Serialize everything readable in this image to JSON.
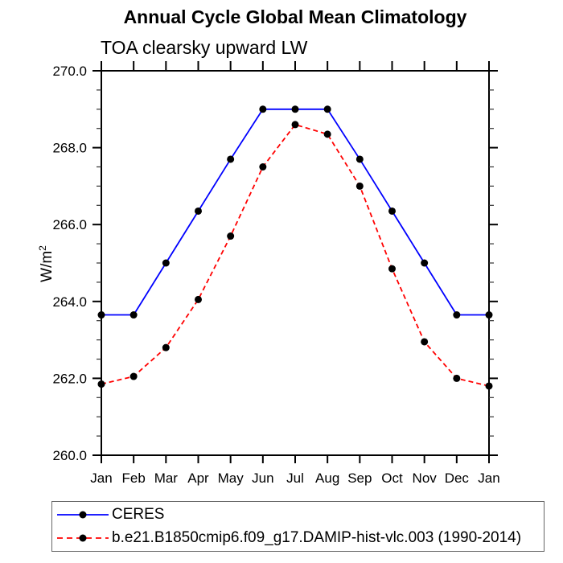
{
  "title": "Annual Cycle Global Mean Climatology",
  "subtitle": "TOA clearsky upward LW",
  "chart_data": {
    "type": "line",
    "x_categories": [
      "Jan",
      "Feb",
      "Mar",
      "Apr",
      "May",
      "Jun",
      "Jul",
      "Aug",
      "Sep",
      "Oct",
      "Nov",
      "Dec",
      "Jan"
    ],
    "xlabel": "",
    "ylabel": "W/m²",
    "ylim": [
      260.0,
      270.0
    ],
    "yticks": [
      {
        "v": 260.0,
        "label": "260.0"
      },
      {
        "v": 262.0,
        "label": "262.0"
      },
      {
        "v": 264.0,
        "label": "264.0"
      },
      {
        "v": 266.0,
        "label": "266.0"
      },
      {
        "v": 268.0,
        "label": "268.0"
      },
      {
        "v": 270.0,
        "label": "270.0"
      }
    ],
    "ytick_minor_step": 0.5,
    "grid": false,
    "legend_position": "bottom",
    "colors": {
      "axis": "#000000",
      "marker": "#000000",
      "ceres_line": "#0000ff",
      "model_line": "#ff0000"
    },
    "series": [
      {
        "name": "CERES",
        "color": "#0000ff",
        "style": "solid",
        "marker": "circle",
        "values": [
          263.65,
          263.65,
          265.0,
          266.35,
          267.7,
          269.0,
          269.0,
          269.0,
          267.7,
          266.35,
          265.0,
          263.65,
          263.65
        ]
      },
      {
        "name": "b.e21.B1850cmip6.f09_g17.DAMIP-hist-vlc.003 (1990-2014)",
        "color": "#ff0000",
        "style": "dashed",
        "marker": "circle",
        "values": [
          261.85,
          262.05,
          262.8,
          264.05,
          265.7,
          267.5,
          268.6,
          268.35,
          267.0,
          264.85,
          262.95,
          262.0,
          261.8
        ]
      }
    ]
  }
}
